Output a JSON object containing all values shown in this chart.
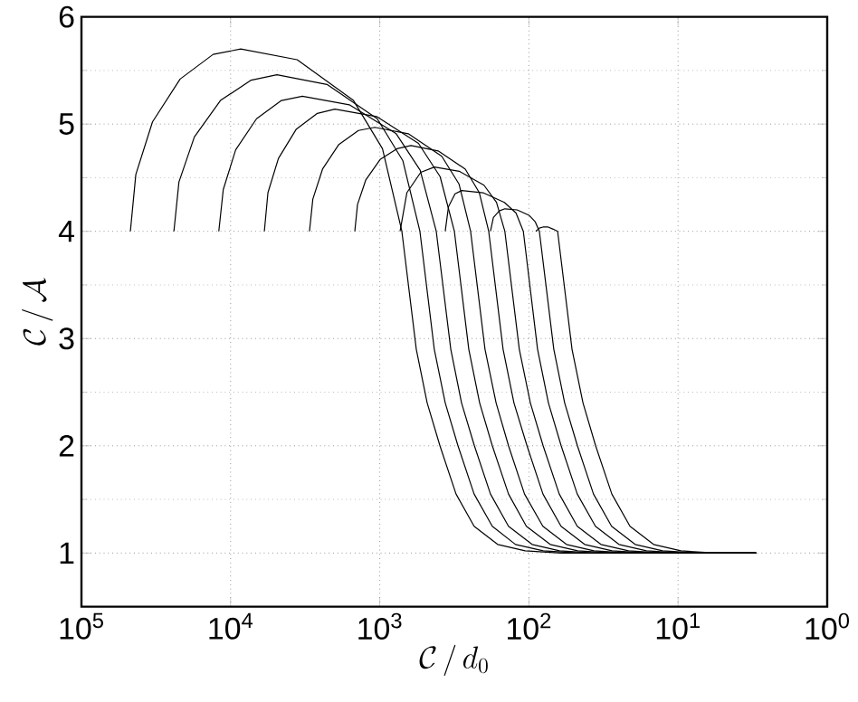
{
  "chart_data": {
    "type": "line",
    "xlabel": "\\mathcal{C}\\,/\\,d_0",
    "ylabel": "\\mathcal{C}\\,/\\,\\mathcal{A}",
    "log": "x",
    "grid": true,
    "marker": "none",
    "line_style": "solid",
    "xlim": [
      100000,
      1
    ],
    "ylim": [
      0.5,
      6
    ],
    "xticks": [
      {
        "value": 100000,
        "label": "10$^{5}$"
      },
      {
        "value": 10000,
        "label": "10$^{4}$"
      },
      {
        "value": 1000,
        "label": "10$^{3}$"
      },
      {
        "value": 100,
        "label": "10$^{2}$"
      },
      {
        "value": 10,
        "label": "10$^{1}$"
      },
      {
        "value": 1,
        "label": "10$^{0}$"
      }
    ],
    "yticks": [
      1,
      2,
      3,
      4,
      5,
      6
    ],
    "series": [
      {
        "color": "#000000",
        "x": [
          47000,
          43200,
          33400,
          21800,
          13100,
          8550,
          3580,
          1500,
          959,
          711,
          569,
          481,
          395,
          308,
          233,
          162,
          106,
          60.8,
          3
        ],
        "values": [
          4,
          4.53,
          5.02,
          5.42,
          5.65,
          5.7,
          5.6,
          5.22,
          4.77,
          4,
          2.9,
          2.4,
          2.0,
          1.55,
          1.25,
          1.08,
          1.02,
          1.0,
          1.0
        ]
      },
      {
        "color": "#000000",
        "x": [
          24000,
          22200,
          17500,
          11700,
          7280,
          4890,
          2260,
          1040,
          701,
          538,
          431,
          364,
          299,
          233,
          176,
          123,
          80.2,
          46.0,
          3
        ],
        "values": [
          4,
          4.46,
          4.88,
          5.22,
          5.41,
          5.46,
          5.37,
          5.05,
          4.66,
          4,
          2.9,
          2.4,
          2.0,
          1.55,
          1.25,
          1.08,
          1.02,
          1.0,
          1.0
        ]
      },
      {
        "color": "#000000",
        "x": [
          12000,
          11200,
          9250,
          6700,
          4560,
          3300,
          1600,
          776,
          536,
          418,
          334,
          283,
          232,
          181,
          137,
          95.2,
          62.3,
          35.7,
          3
        ],
        "values": [
          4,
          4.39,
          4.76,
          5.05,
          5.22,
          5.26,
          5.18,
          4.91,
          4.57,
          4,
          2.9,
          2.4,
          2.0,
          1.55,
          1.25,
          1.08,
          1.02,
          1.0,
          1.0
        ]
      },
      {
        "color": "#000000",
        "x": [
          5940,
          5620,
          4780,
          3640,
          2620,
          2000,
          1050,
          550,
          394,
          316,
          253,
          214,
          176,
          137,
          104,
          72.0,
          47.1,
          27.0,
          3
        ],
        "values": [
          4,
          4.36,
          4.68,
          4.95,
          5.1,
          5.14,
          5.07,
          4.82,
          4.51,
          4,
          2.9,
          2.4,
          2.0,
          1.55,
          1.25,
          1.08,
          1.02,
          1.0,
          1.0
        ]
      },
      {
        "color": "#000000",
        "x": [
          2960,
          2810,
          2420,
          1880,
          1390,
          1080,
          644,
          384,
          294,
          246,
          197,
          166,
          137,
          107,
          80.6,
          56.0,
          36.7,
          21.0,
          3
        ],
        "values": [
          4,
          4.3,
          4.58,
          4.81,
          4.94,
          4.97,
          4.91,
          4.7,
          4.44,
          4,
          2.9,
          2.4,
          2.0,
          1.55,
          1.25,
          1.08,
          1.02,
          1.0,
          1.0
        ]
      },
      {
        "color": "#000000",
        "x": [
          1470,
          1410,
          1240,
          995,
          767,
          618,
          406,
          267,
          215,
          186,
          149,
          126,
          103,
          80.5,
          60.9,
          42.3,
          27.7,
          15.9,
          3
        ],
        "values": [
          4,
          4.25,
          4.48,
          4.67,
          4.77,
          4.8,
          4.75,
          4.58,
          4.36,
          4,
          2.9,
          2.4,
          2.0,
          1.55,
          1.25,
          1.08,
          1.02,
          1.0,
          1.0
        ]
      },
      {
        "color": "#000000",
        "x": [
          731,
          658,
          531,
          430,
          293,
          200,
          165,
          145,
          116,
          97.8,
          80.3,
          62.6,
          47.4,
          32.9,
          21.5,
          12.4,
          3
        ],
        "values": [
          4,
          4.36,
          4.55,
          4.6,
          4.56,
          4.43,
          4.27,
          4,
          2.9,
          2.4,
          2.0,
          1.55,
          1.25,
          1.08,
          1.02,
          1.0,
          1.0
        ]
      },
      {
        "color": "#000000",
        "x": [
          364,
          346,
          313,
          282,
          203,
          146,
          122,
          109,
          87.5,
          74.0,
          60.8,
          47.4,
          35.8,
          24.9,
          16.3,
          9.35,
          3
        ],
        "values": [
          4,
          4.23,
          4.35,
          4.38,
          4.36,
          4.27,
          4.17,
          4,
          2.9,
          2.4,
          2.0,
          1.55,
          1.25,
          1.08,
          1.02,
          1.0,
          1.0
        ]
      },
      {
        "color": "#000000",
        "x": [
          181,
          173,
          158,
          145,
          120,
          99.8,
          90.8,
          85.1,
          68.1,
          57.6,
          47.3,
          36.9,
          27.9,
          19.4,
          12.7,
          7.28,
          3
        ],
        "values": [
          4,
          4.13,
          4.19,
          4.21,
          4.2,
          4.15,
          4.09,
          4,
          2.9,
          2.4,
          2.0,
          1.55,
          1.25,
          1.08,
          1.02,
          1.0,
          1.0
        ]
      },
      {
        "color": "#000000",
        "x": [
          89.9,
          85.1,
          80.4,
          74.3,
          68.7,
          64.2,
          51.4,
          43.4,
          35.7,
          27.8,
          21.0,
          14.6,
          9.58,
          5.49,
          3
        ],
        "values": [
          4,
          4.03,
          4.04,
          4.04,
          4.02,
          4,
          2.9,
          2.4,
          2.0,
          1.55,
          1.25,
          1.08,
          1.02,
          1.0,
          1.0
        ]
      }
    ]
  }
}
